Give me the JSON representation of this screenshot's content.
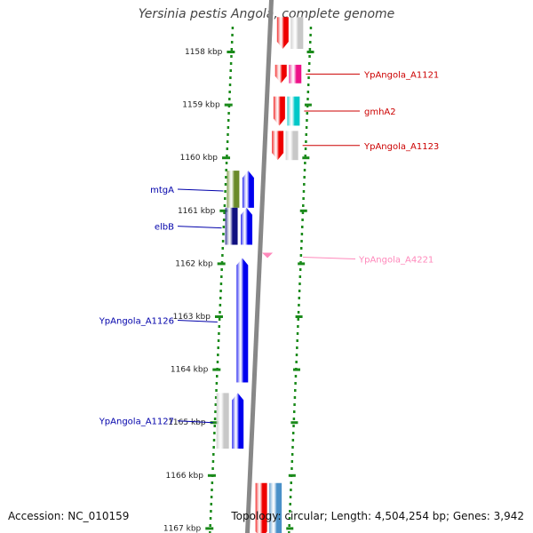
{
  "title": "Yersinia pestis Angola, complete genome",
  "accession": "Accession: NC_010159",
  "topology": "Topology: circular; Length: 4,504,254 bp; Genes: 3,942",
  "colors": {
    "axis_dots": "#1a8a1a",
    "backbone": "#888888",
    "forward_label": "#cc0000",
    "reverse_label": "#0000aa",
    "pseudo_label": "#ff88bb"
  },
  "ticks": [
    {
      "label": "1158 kbp",
      "kbp": 1158
    },
    {
      "label": "1159 kbp",
      "kbp": 1159
    },
    {
      "label": "1160 kbp",
      "kbp": 1160
    },
    {
      "label": "1161 kbp",
      "kbp": 1161
    },
    {
      "label": "1162 kbp",
      "kbp": 1162
    },
    {
      "label": "1163 kbp",
      "kbp": 1163
    },
    {
      "label": "1164 kbp",
      "kbp": 1164
    },
    {
      "label": "1165 kbp",
      "kbp": 1165
    },
    {
      "label": "1166 kbp",
      "kbp": 1166
    },
    {
      "label": "1167 kbp",
      "kbp": 1167
    }
  ],
  "genes_forward": [
    {
      "label": "",
      "start_kbp": 1157.35,
      "end_kbp": 1157.95,
      "color": "#ee0000",
      "partner_color": "#c8c8c8"
    },
    {
      "label": "YpAngola_A1121",
      "start_kbp": 1158.25,
      "end_kbp": 1158.6,
      "color": "#ee0000",
      "partner_color": "#ee1188"
    },
    {
      "label": "gmhA2",
      "start_kbp": 1158.85,
      "end_kbp": 1159.4,
      "color": "#ee0000",
      "partner_color": "#00c8c8"
    },
    {
      "label": "YpAngola_A1123",
      "start_kbp": 1159.5,
      "end_kbp": 1160.05,
      "color": "#ee0000",
      "partner_color": "#c8c8c8"
    },
    {
      "label": "",
      "start_kbp": 1166.15,
      "end_kbp": 1167.2,
      "color": "#ee0000",
      "partner_color": "#4a90c8"
    }
  ],
  "genes_reverse": [
    {
      "label": "mtgA",
      "start_kbp": 1160.25,
      "end_kbp": 1160.95,
      "color": "#0000ee",
      "partner_color": "#6a8a2a"
    },
    {
      "label": "elbB",
      "start_kbp": 1160.95,
      "end_kbp": 1161.65,
      "color": "#0000ee",
      "partner_color": "#101080"
    },
    {
      "label": "YpAngola_A1126",
      "start_kbp": 1161.9,
      "end_kbp": 1164.25,
      "color": "#0000ee",
      "partner_color": ""
    },
    {
      "label": "YpAngola_A1127",
      "start_kbp": 1164.45,
      "end_kbp": 1165.5,
      "color": "#0000ee",
      "partner_color": "#c8c8c8"
    }
  ],
  "pseudo": [
    {
      "label": "YpAngola_A4221",
      "kbp": 1161.85,
      "color": "#ff88bb"
    }
  ]
}
